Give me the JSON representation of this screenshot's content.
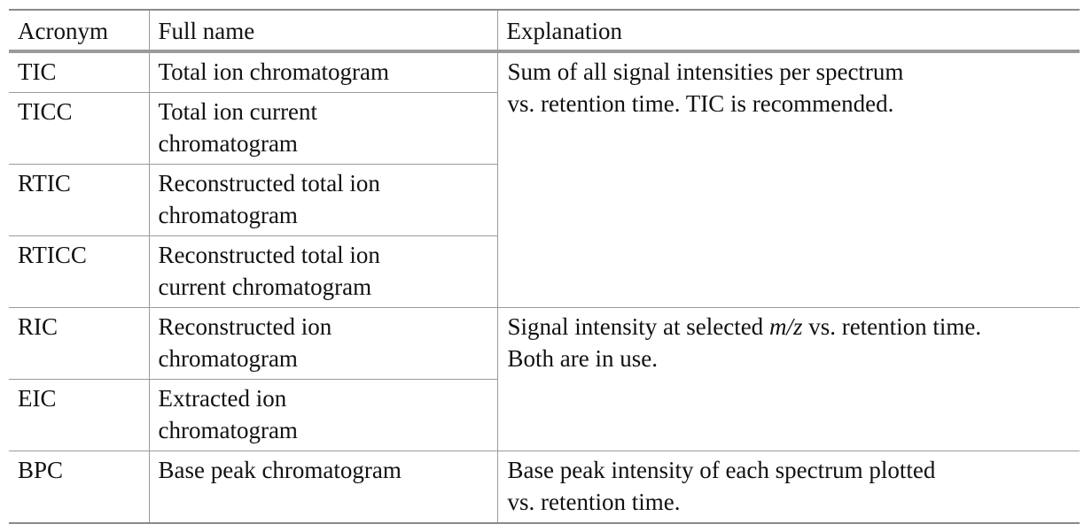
{
  "table": {
    "headers": {
      "acronym": "Acronym",
      "full_name": "Full name",
      "explanation": "Explanation"
    },
    "rows": [
      {
        "acronym": "TIC",
        "full_name": "Total ion chromatogram"
      },
      {
        "acronym": "TICC",
        "full_name_line1": "Total ion current",
        "full_name_line2": "chromatogram"
      },
      {
        "acronym": "RTIC",
        "full_name_line1": "Reconstructed total ion",
        "full_name_line2": "chromatogram"
      },
      {
        "acronym": "RTICC",
        "full_name_line1": "Reconstructed total ion",
        "full_name_line2": "current chromatogram"
      },
      {
        "acronym": "RIC",
        "full_name_line1": "Reconstructed ion",
        "full_name_line2": "chromatogram"
      },
      {
        "acronym": "EIC",
        "full_name_line1": "Extracted ion",
        "full_name_line2": "chromatogram"
      },
      {
        "acronym": "BPC",
        "full_name": "Base peak chromatogram"
      }
    ],
    "explanations": {
      "tic_group_line1": "Sum of all signal intensities per spectrum",
      "tic_group_line2": "vs. retention time. TIC is recommended.",
      "ric_group_pre": "Signal intensity at selected ",
      "ric_group_mz": "m/z",
      "ric_group_post": " vs. retention time.",
      "ric_group_line2": "Both are in use.",
      "bpc_line1": "Base peak intensity of each spectrum plotted",
      "bpc_line2": "vs. retention time."
    }
  }
}
